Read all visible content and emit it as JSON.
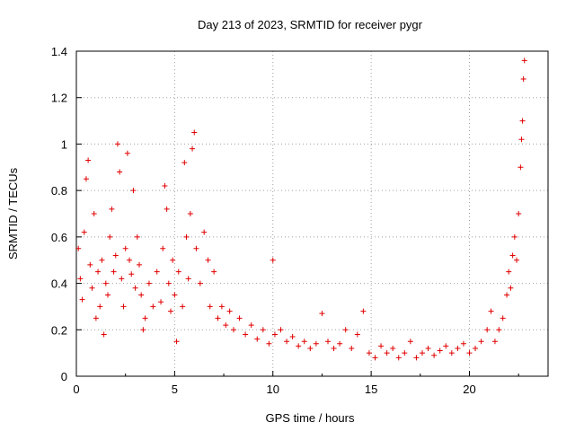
{
  "chart_data": {
    "type": "scatter",
    "title": "Day 213 of 2023, SRMTID for receiver pygr",
    "xlabel": "GPS time / hours",
    "ylabel": "SRMTID / TECUs",
    "xlim": [
      0,
      24
    ],
    "ylim": [
      0,
      1.4
    ],
    "xticks": [
      0,
      5,
      10,
      15,
      20
    ],
    "xtick_labels": [
      "0",
      "5",
      "10",
      "15",
      "20"
    ],
    "yticks": [
      0,
      0.2,
      0.4,
      0.6,
      0.8,
      1.0,
      1.2,
      1.4
    ],
    "ytick_labels": [
      "0",
      "0.2",
      "0.4",
      "0.6",
      "0.8",
      "1",
      "1.2",
      "1.4"
    ],
    "grid": true,
    "marker": "+",
    "color": "#e00000",
    "series": [
      {
        "name": "SRMTID",
        "points": [
          [
            0.1,
            0.55
          ],
          [
            0.2,
            0.42
          ],
          [
            0.3,
            0.33
          ],
          [
            0.4,
            0.62
          ],
          [
            0.5,
            0.85
          ],
          [
            0.6,
            0.93
          ],
          [
            0.7,
            0.48
          ],
          [
            0.8,
            0.38
          ],
          [
            0.9,
            0.7
          ],
          [
            1.0,
            0.25
          ],
          [
            1.1,
            0.45
          ],
          [
            1.2,
            0.3
          ],
          [
            1.3,
            0.5
          ],
          [
            1.4,
            0.18
          ],
          [
            1.5,
            0.4
          ],
          [
            1.6,
            0.35
          ],
          [
            1.7,
            0.6
          ],
          [
            1.8,
            0.72
          ],
          [
            1.9,
            0.45
          ],
          [
            2.0,
            0.52
          ],
          [
            2.1,
            1.0
          ],
          [
            2.2,
            0.88
          ],
          [
            2.3,
            0.42
          ],
          [
            2.4,
            0.3
          ],
          [
            2.5,
            0.55
          ],
          [
            2.6,
            0.96
          ],
          [
            2.7,
            0.5
          ],
          [
            2.8,
            0.44
          ],
          [
            2.9,
            0.8
          ],
          [
            3.0,
            0.38
          ],
          [
            3.1,
            0.6
          ],
          [
            3.2,
            0.48
          ],
          [
            3.3,
            0.35
          ],
          [
            3.4,
            0.2
          ],
          [
            3.5,
            0.25
          ],
          [
            3.7,
            0.4
          ],
          [
            3.9,
            0.3
          ],
          [
            4.1,
            0.45
          ],
          [
            4.3,
            0.32
          ],
          [
            4.4,
            0.55
          ],
          [
            4.5,
            0.82
          ],
          [
            4.6,
            0.72
          ],
          [
            4.7,
            0.4
          ],
          [
            4.8,
            0.28
          ],
          [
            4.9,
            0.5
          ],
          [
            5.0,
            0.35
          ],
          [
            5.1,
            0.15
          ],
          [
            5.2,
            0.45
          ],
          [
            5.4,
            0.3
          ],
          [
            5.5,
            0.92
          ],
          [
            5.6,
            0.6
          ],
          [
            5.7,
            0.42
          ],
          [
            5.8,
            0.7
          ],
          [
            5.9,
            0.98
          ],
          [
            6.0,
            1.05
          ],
          [
            6.1,
            0.55
          ],
          [
            6.3,
            0.4
          ],
          [
            6.5,
            0.62
          ],
          [
            6.7,
            0.5
          ],
          [
            6.8,
            0.3
          ],
          [
            7.0,
            0.45
          ],
          [
            7.2,
            0.25
          ],
          [
            7.4,
            0.3
          ],
          [
            7.6,
            0.22
          ],
          [
            7.8,
            0.28
          ],
          [
            8.0,
            0.2
          ],
          [
            8.3,
            0.25
          ],
          [
            8.6,
            0.18
          ],
          [
            8.9,
            0.22
          ],
          [
            9.2,
            0.16
          ],
          [
            9.5,
            0.2
          ],
          [
            9.8,
            0.14
          ],
          [
            10.0,
            0.5
          ],
          [
            10.1,
            0.18
          ],
          [
            10.4,
            0.2
          ],
          [
            10.7,
            0.15
          ],
          [
            11.0,
            0.17
          ],
          [
            11.3,
            0.13
          ],
          [
            11.6,
            0.15
          ],
          [
            11.9,
            0.12
          ],
          [
            12.2,
            0.14
          ],
          [
            12.5,
            0.27
          ],
          [
            12.8,
            0.15
          ],
          [
            13.1,
            0.12
          ],
          [
            13.4,
            0.14
          ],
          [
            13.7,
            0.2
          ],
          [
            14.0,
            0.12
          ],
          [
            14.3,
            0.18
          ],
          [
            14.6,
            0.28
          ],
          [
            14.9,
            0.1
          ],
          [
            15.2,
            0.08
          ],
          [
            15.5,
            0.13
          ],
          [
            15.8,
            0.1
          ],
          [
            16.1,
            0.12
          ],
          [
            16.4,
            0.08
          ],
          [
            16.7,
            0.1
          ],
          [
            17.0,
            0.15
          ],
          [
            17.3,
            0.08
          ],
          [
            17.6,
            0.1
          ],
          [
            17.9,
            0.12
          ],
          [
            18.2,
            0.09
          ],
          [
            18.5,
            0.11
          ],
          [
            18.8,
            0.13
          ],
          [
            19.1,
            0.1
          ],
          [
            19.4,
            0.12
          ],
          [
            19.7,
            0.14
          ],
          [
            20.0,
            0.1
          ],
          [
            20.3,
            0.12
          ],
          [
            20.6,
            0.15
          ],
          [
            20.9,
            0.2
          ],
          [
            21.1,
            0.28
          ],
          [
            21.3,
            0.15
          ],
          [
            21.5,
            0.2
          ],
          [
            21.7,
            0.25
          ],
          [
            21.9,
            0.35
          ],
          [
            22.0,
            0.45
          ],
          [
            22.1,
            0.38
          ],
          [
            22.2,
            0.52
          ],
          [
            22.3,
            0.6
          ],
          [
            22.4,
            0.5
          ],
          [
            22.5,
            0.7
          ],
          [
            22.6,
            0.9
          ],
          [
            22.65,
            1.02
          ],
          [
            22.7,
            1.1
          ],
          [
            22.75,
            1.28
          ],
          [
            22.8,
            1.36
          ]
        ]
      }
    ]
  }
}
